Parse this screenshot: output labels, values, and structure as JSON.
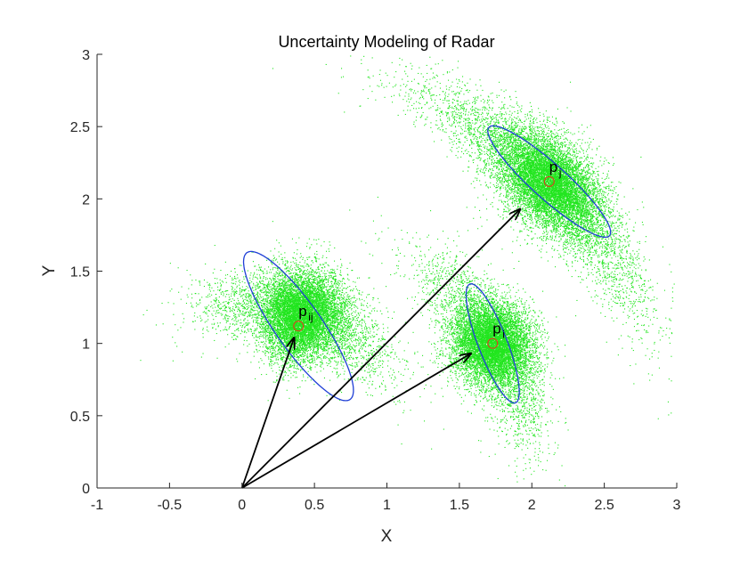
{
  "chart_data": {
    "type": "scatter",
    "title": "Uncertainty Modeling of Radar",
    "xlabel": "X",
    "ylabel": "Y",
    "xlim": [
      -1,
      3
    ],
    "ylim": [
      0,
      3
    ],
    "x_ticks": [
      -1,
      -0.5,
      0,
      0.5,
      1,
      1.5,
      2,
      2.5,
      3
    ],
    "x_tick_labels": [
      "-1",
      "-0.5",
      "0",
      "0.5",
      "1",
      "1.5",
      "2",
      "2.5",
      "3"
    ],
    "y_ticks": [
      0,
      0.5,
      1,
      1.5,
      2,
      2.5,
      3
    ],
    "y_tick_labels": [
      "0",
      "0.5",
      "1",
      "1.5",
      "2",
      "2.5",
      "3"
    ],
    "grid": false,
    "legend": "none",
    "colors": {
      "samples": "#22e61f",
      "ellipse": "#1f3fd6",
      "point_marker": "#e8321e",
      "arrow": "#000000",
      "axis": "#262626"
    },
    "points": [
      {
        "label": "p",
        "sub": "ij",
        "x": 0.39,
        "y": 1.12
      },
      {
        "label": "p",
        "sub": "i",
        "x": 1.73,
        "y": 1.0
      },
      {
        "label": "p",
        "sub": "j",
        "x": 2.12,
        "y": 2.12
      }
    ],
    "ellipses": [
      {
        "cx": 0.39,
        "cy": 1.12,
        "a": 0.62,
        "b": 0.16,
        "angle_deg": -55
      },
      {
        "cx": 1.73,
        "cy": 1.0,
        "a": 0.44,
        "b": 0.1,
        "angle_deg": -69
      },
      {
        "cx": 2.12,
        "cy": 2.12,
        "a": 0.56,
        "b": 0.12,
        "angle_deg": -42
      }
    ],
    "arrows": [
      {
        "from": [
          0,
          0
        ],
        "to": [
          0.36,
          1.04
        ]
      },
      {
        "from": [
          0,
          0
        ],
        "to": [
          1.58,
          0.93
        ]
      },
      {
        "from": [
          0,
          0
        ],
        "to": [
          1.92,
          1.93
        ]
      }
    ],
    "clouds": [
      {
        "range": [
          1.28,
          0.16
        ],
        "bearing": [
          1.24,
          0.1
        ],
        "n": 7000,
        "extra_n": 4000
      },
      {
        "range": [
          2.0,
          0.14
        ],
        "bearing": [
          0.523,
          0.07
        ],
        "n": 7000,
        "extra_n": 3500
      },
      {
        "range": [
          3.0,
          0.14
        ],
        "bearing": [
          0.785,
          0.07
        ],
        "n": 8000,
        "extra_n": 4500
      }
    ]
  }
}
